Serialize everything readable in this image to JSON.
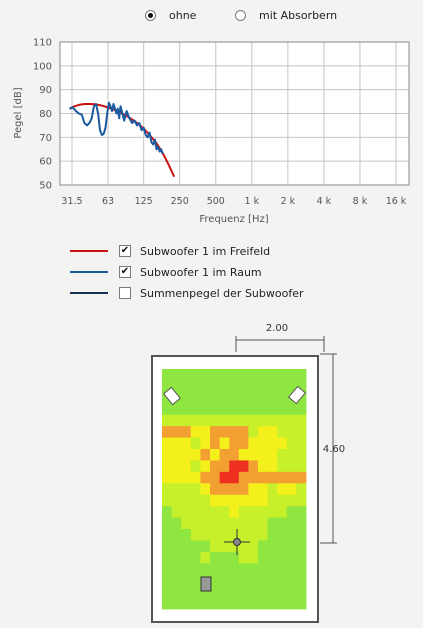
{
  "radio": {
    "options": [
      {
        "label": "ohne",
        "selected": true
      },
      {
        "label": "mit Absorbern",
        "selected": false
      }
    ]
  },
  "chart_data": {
    "type": "line",
    "xlabel": "Frequenz [Hz]",
    "ylabel": "Pegel [dB]",
    "x_scale": "log",
    "x_ticks": [
      "31.5",
      "63",
      "125",
      "250",
      "500",
      "1 k",
      "2 k",
      "4 k",
      "8 k",
      "16 k"
    ],
    "x_tick_values": [
      31.5,
      63,
      125,
      250,
      500,
      1000,
      2000,
      4000,
      8000,
      16000
    ],
    "y_ticks": [
      "50",
      "60",
      "70",
      "80",
      "90",
      "100",
      "110"
    ],
    "ylim": [
      50,
      110
    ],
    "grid": true,
    "series": [
      {
        "name": "Subwoofer 1 im Freifeld",
        "color": "#cc1111",
        "x": [
          30,
          33,
          36,
          40,
          45,
          50,
          56,
          63,
          71,
          80,
          90,
          100,
          112,
          125,
          140,
          160,
          180,
          200,
          225
        ],
        "y": [
          82,
          83,
          83.6,
          84,
          84,
          83.8,
          83.3,
          82.5,
          81.5,
          80.3,
          79,
          77.5,
          75.7,
          73.7,
          71,
          67.5,
          63.5,
          59,
          53.5
        ]
      },
      {
        "name": "Subwoofer 1 im Raum",
        "color": "#1a5aa0",
        "x": [
          30,
          32,
          34,
          36,
          38,
          40,
          42,
          44,
          46,
          48,
          50,
          52,
          54,
          56,
          58,
          60,
          62,
          64,
          66,
          68,
          70,
          72,
          74,
          76,
          78,
          80,
          83,
          86,
          90,
          95,
          100,
          105,
          110,
          115,
          120,
          125,
          130,
          135,
          140,
          145,
          150,
          155,
          160,
          165,
          170,
          175,
          180
        ],
        "y": [
          82,
          82.5,
          81,
          80,
          79.5,
          76,
          75,
          76,
          78,
          83,
          84,
          80,
          73,
          71,
          71.5,
          74,
          80,
          84.5,
          83,
          81,
          84,
          82,
          80,
          82,
          78,
          83,
          80,
          77,
          81,
          78,
          76,
          77,
          75,
          76,
          73,
          74,
          71,
          70,
          72,
          68,
          67,
          69,
          65,
          66,
          64,
          65,
          63
        ]
      },
      {
        "name": "Summenpegel der Subwoofer",
        "color": "#1a2f55",
        "x": [],
        "y": []
      }
    ]
  },
  "legend": [
    {
      "label": "Subwoofer 1 im Freifeld",
      "color": "#cc1111",
      "checked": true
    },
    {
      "label": "Subwoofer 1 im Raum",
      "color": "#1a5aa0",
      "checked": true
    },
    {
      "label": "Summenpegel der Subwoofer",
      "color": "#1a2f55",
      "checked": false
    }
  ],
  "room": {
    "width_label": "2.00",
    "length_label": "4.60",
    "heatmap_colors": {
      "green": "#8fe640",
      "lime": "#c6f02a",
      "yellow": "#f4f01c",
      "orange": "#f3a032",
      "red": "#ee3020"
    },
    "heatmap": [
      "GGGGGGGGGGGGGGG",
      "GGGGGGGGGGGGGGG",
      "GGGGGGGGGGGGGGG",
      "GGGGGGGGGGGGGGG",
      "LLLLLLLLLLLLLLL",
      "OOOYYOOOOLYYLLL",
      "YYYLYOYOOYYYYLL",
      "YYYYOYOOYYYYLLL",
      "YYYLYOORROYYLLL",
      "YYYYOORROOOOOOO",
      "LLLLYOOOOYYLYYL",
      "LLLLLYYYYYYLLLL",
      "GLLLLLLYLLLLLGG",
      "GGLLLLLLLLLGGGG",
      "GGGLLLLLLLLGGGG",
      "GGGGGLLLLLGGGGG",
      "GGGGLGGGLLGGGGG",
      "GGGGGGGGGGGGGGG",
      "GGGGGGGGGGGGGGG",
      "GGGGGGGGGGGGGGG",
      "GGGGGGGGGGGGGGG"
    ]
  }
}
